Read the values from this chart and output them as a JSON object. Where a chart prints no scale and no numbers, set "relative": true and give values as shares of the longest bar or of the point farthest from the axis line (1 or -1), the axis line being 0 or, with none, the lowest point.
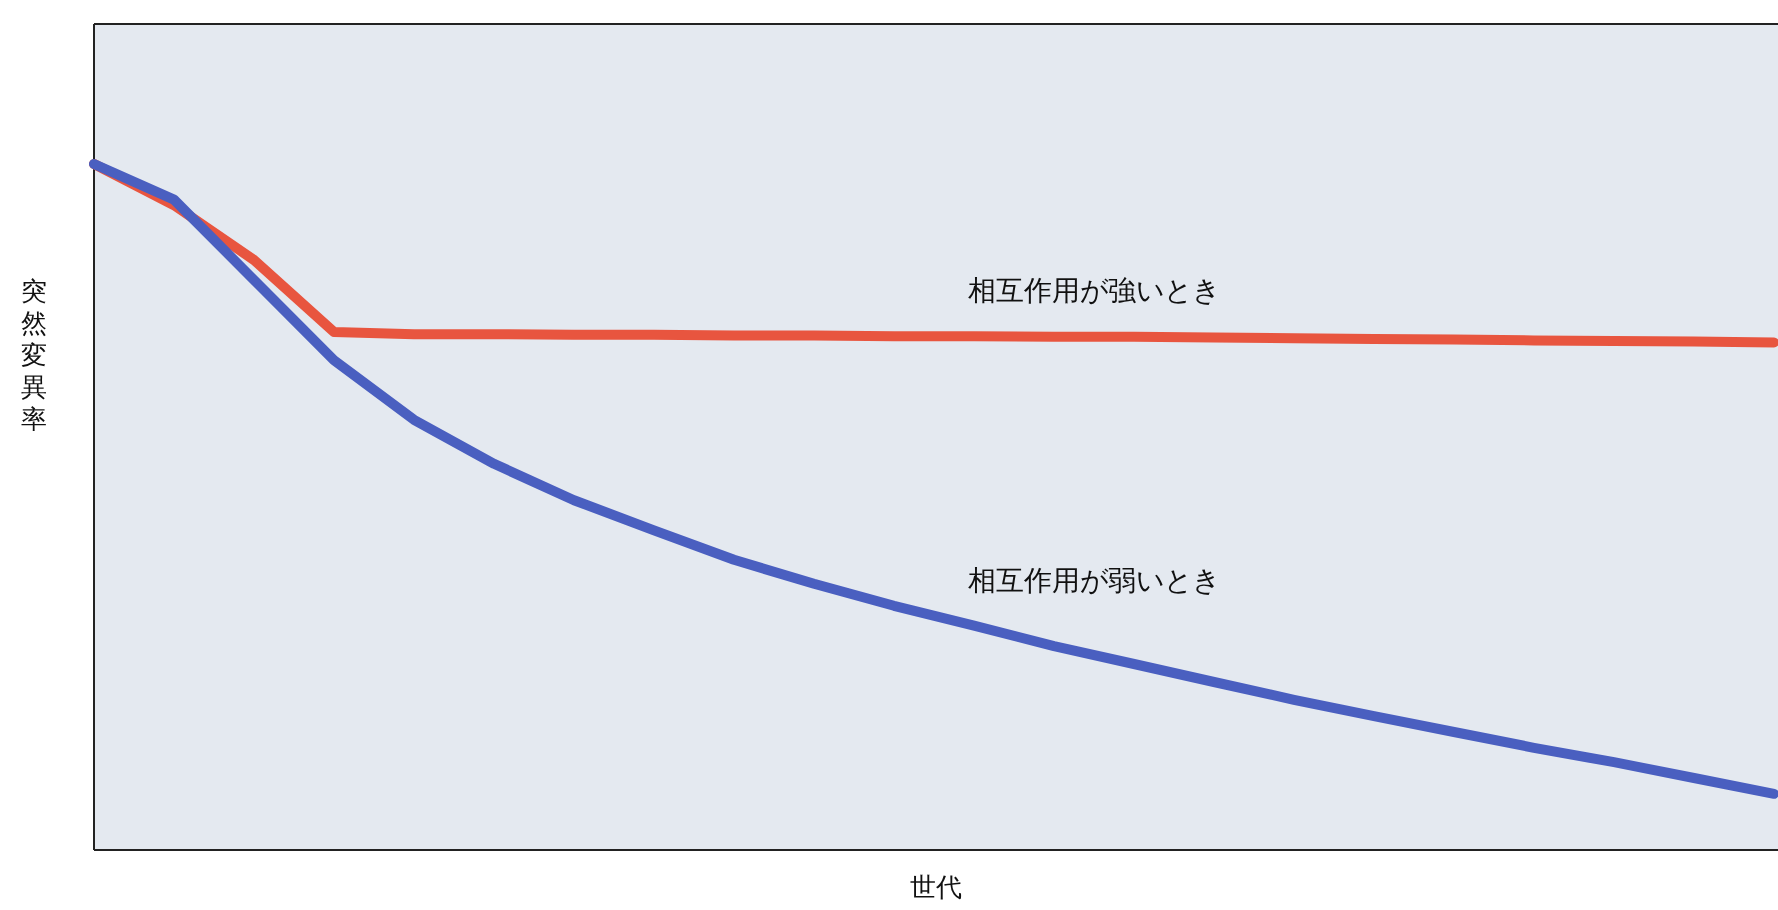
{
  "chart_data": {
    "type": "line",
    "relative": true,
    "xlabel": "世代",
    "ylabel": "突然変異率",
    "categories": [
      null,
      null,
      null,
      null,
      null,
      null,
      null,
      null,
      null,
      null,
      null,
      null,
      null,
      null,
      null,
      null,
      null,
      null,
      null,
      null,
      null,
      null
    ],
    "series": [
      {
        "name": "相互作用が強いとき",
        "color": "#e8553f",
        "values": [
          1,
          0.94,
          0.86,
          0.755,
          0.752,
          0.752,
          0.751,
          0.751,
          0.75,
          0.75,
          0.749,
          0.749,
          0.748,
          0.748,
          0.747,
          0.746,
          0.745,
          0.744,
          0.743,
          0.742,
          0.741,
          0.74
        ]
      },
      {
        "name": "相互作用が弱いとき",
        "color": "#4a5fc0",
        "values": [
          1,
          0.948,
          0.831,
          0.714,
          0.627,
          0.563,
          0.51,
          0.466,
          0.423,
          0.388,
          0.356,
          0.327,
          0.297,
          0.271,
          0.245,
          0.219,
          0.195,
          0.172,
          0.149,
          0.128,
          0.105,
          0.082
        ]
      }
    ]
  }
}
